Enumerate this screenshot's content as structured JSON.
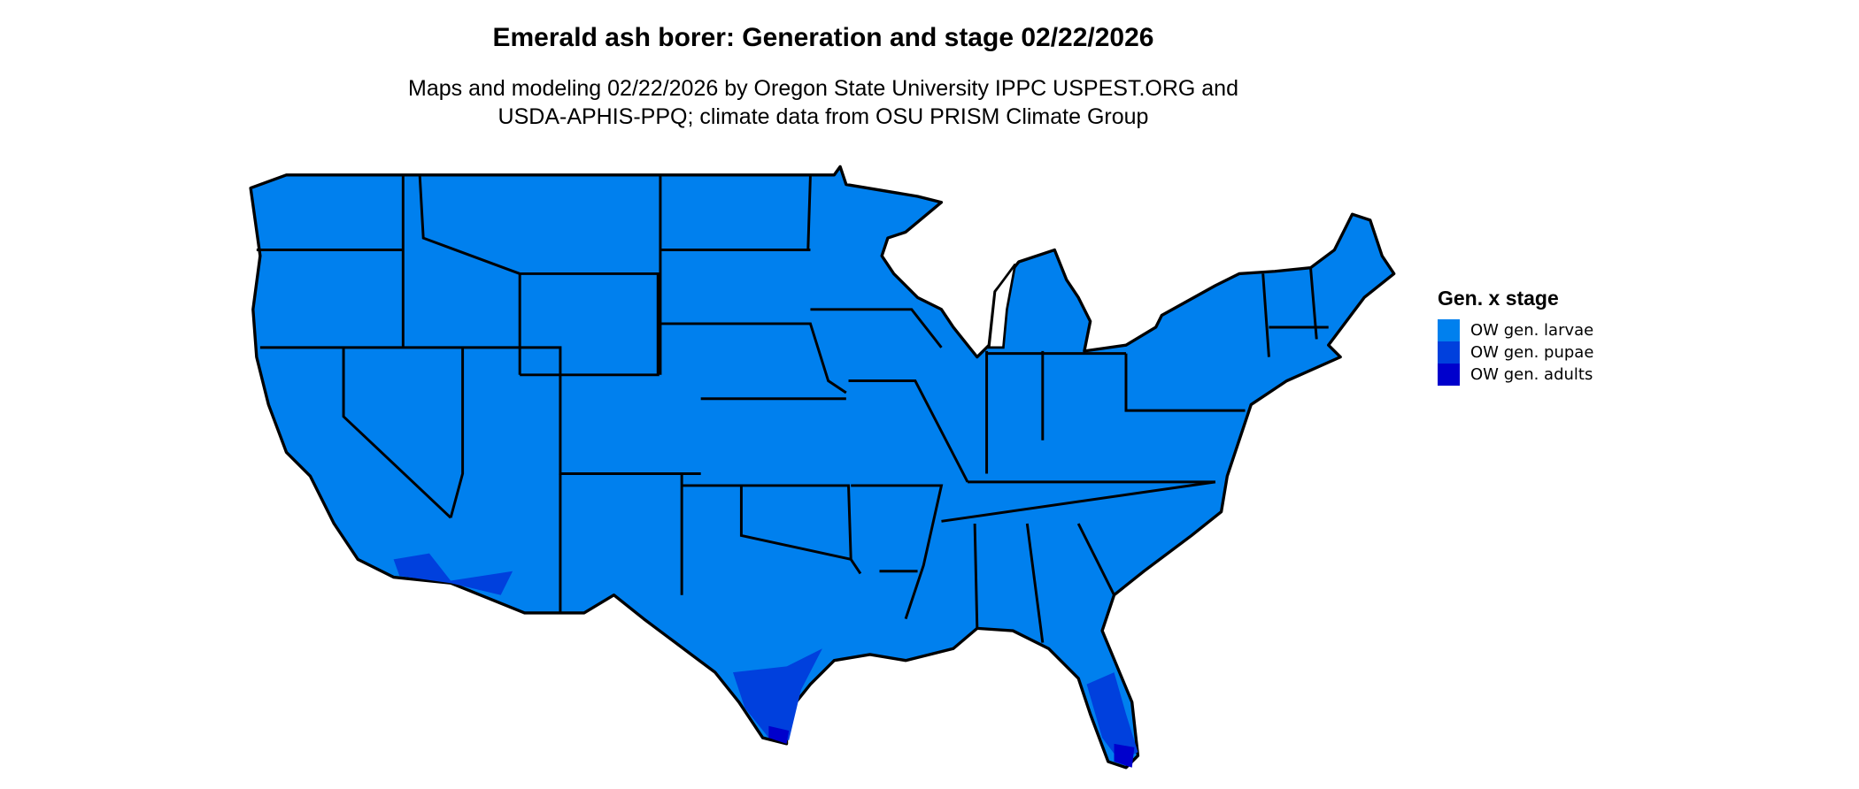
{
  "title": "Emerald ash borer: Generation and stage 02/22/2026",
  "subtitle_lines": [
    "Maps and modeling 02/22/2026 by Oregon State University IPPC USPEST.ORG and",
    "USDA-APHIS-PPQ; climate data from OSU PRISM Climate Group"
  ],
  "legend": {
    "title": "Gen. x stage",
    "items": [
      {
        "label": "OW gen. larvae",
        "color": "#0080EE"
      },
      {
        "label": "OW gen. pupae",
        "color": "#0040DD"
      },
      {
        "label": "OW gen. adults",
        "color": "#0000CC"
      }
    ]
  },
  "map": {
    "region": "Contiguous United States",
    "dominant_category": "OW gen. larvae",
    "pupae_regions": [
      "southern Florida",
      "southern Texas",
      "southern Arizona",
      "southern California"
    ],
    "adults_regions": [
      "Florida Keys / southern tip of Florida",
      "southern tip of Texas"
    ],
    "border_color": "#000000"
  }
}
